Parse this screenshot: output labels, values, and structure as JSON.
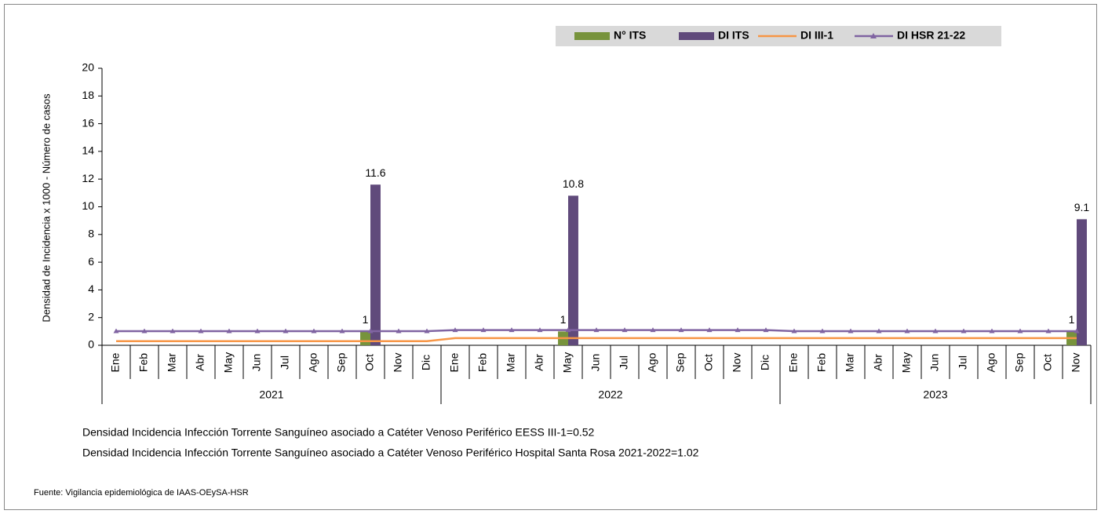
{
  "chart_data": {
    "type": "bar-line",
    "y_label": "Densidad de Incidencia x 1000 - Número de casos",
    "groups": [
      {
        "name": "2021",
        "categories": [
          "Ene",
          "Feb",
          "Mar",
          "Abr",
          "May",
          "Jun",
          "Jul",
          "Ago",
          "Sep",
          "Oct",
          "Nov",
          "Dic"
        ]
      },
      {
        "name": "2022",
        "categories": [
          "Ene",
          "Feb",
          "Mar",
          "Abr",
          "May",
          "Jun",
          "Jul",
          "Ago",
          "Sep",
          "Oct",
          "Nov",
          "Dic"
        ]
      },
      {
        "name": "2023",
        "categories": [
          "Ene",
          "Feb",
          "Mar",
          "Abr",
          "May",
          "Jun",
          "Jul",
          "Ago",
          "Sep",
          "Oct",
          "Nov"
        ]
      }
    ],
    "ylim": [
      0,
      20
    ],
    "yticks": [
      0,
      2,
      4,
      6,
      8,
      10,
      12,
      14,
      16,
      18,
      20
    ],
    "legend": "top-right",
    "series": [
      {
        "name": "N° ITS",
        "kind": "bar",
        "color": "#77933c",
        "values": [
          null,
          null,
          null,
          null,
          null,
          null,
          null,
          null,
          null,
          1,
          null,
          null,
          null,
          null,
          null,
          null,
          1,
          null,
          null,
          null,
          null,
          null,
          null,
          null,
          null,
          null,
          null,
          null,
          null,
          null,
          null,
          null,
          null,
          null,
          1
        ]
      },
      {
        "name": "DI ITS",
        "kind": "bar",
        "color": "#604a7b",
        "values": [
          null,
          null,
          null,
          null,
          null,
          null,
          null,
          null,
          null,
          11.6,
          null,
          null,
          null,
          null,
          null,
          null,
          10.8,
          null,
          null,
          null,
          null,
          null,
          null,
          null,
          null,
          null,
          null,
          null,
          null,
          null,
          null,
          null,
          null,
          null,
          9.1
        ]
      },
      {
        "name": "DI III-1",
        "kind": "line",
        "color": "#f79646",
        "values": [
          0.3,
          0.3,
          0.3,
          0.3,
          0.3,
          0.3,
          0.3,
          0.3,
          0.3,
          0.3,
          0.3,
          0.3,
          0.52,
          0.52,
          0.52,
          0.52,
          0.52,
          0.52,
          0.52,
          0.52,
          0.52,
          0.52,
          0.52,
          0.52,
          0.52,
          0.52,
          0.52,
          0.52,
          0.52,
          0.52,
          0.52,
          0.52,
          0.52,
          0.52,
          0.52
        ]
      },
      {
        "name": "DI HSR 21-22",
        "kind": "line",
        "marker": "triangle",
        "color": "#8064a2",
        "values": [
          1.02,
          1.02,
          1.02,
          1.02,
          1.02,
          1.02,
          1.02,
          1.02,
          1.02,
          1.02,
          1.02,
          1.02,
          1.1,
          1.1,
          1.1,
          1.1,
          1.1,
          1.1,
          1.1,
          1.1,
          1.1,
          1.1,
          1.1,
          1.1,
          1.02,
          1.02,
          1.02,
          1.02,
          1.02,
          1.02,
          1.02,
          1.02,
          1.02,
          1.02,
          1.02
        ]
      }
    ],
    "notes": [
      "Densidad Incidencia Infección Torrente Sanguíneo asociado a Catéter Venoso Periférico  EESS III-1=0.52",
      "Densidad Incidencia Infección Torrente Sanguíneo asociado a Catéter Venoso Periférico Hospital Santa Rosa 2021-2022=1.02"
    ],
    "source": "Fuente: Vigilancia epidemiológica de IAAS-OEySA-HSR"
  }
}
